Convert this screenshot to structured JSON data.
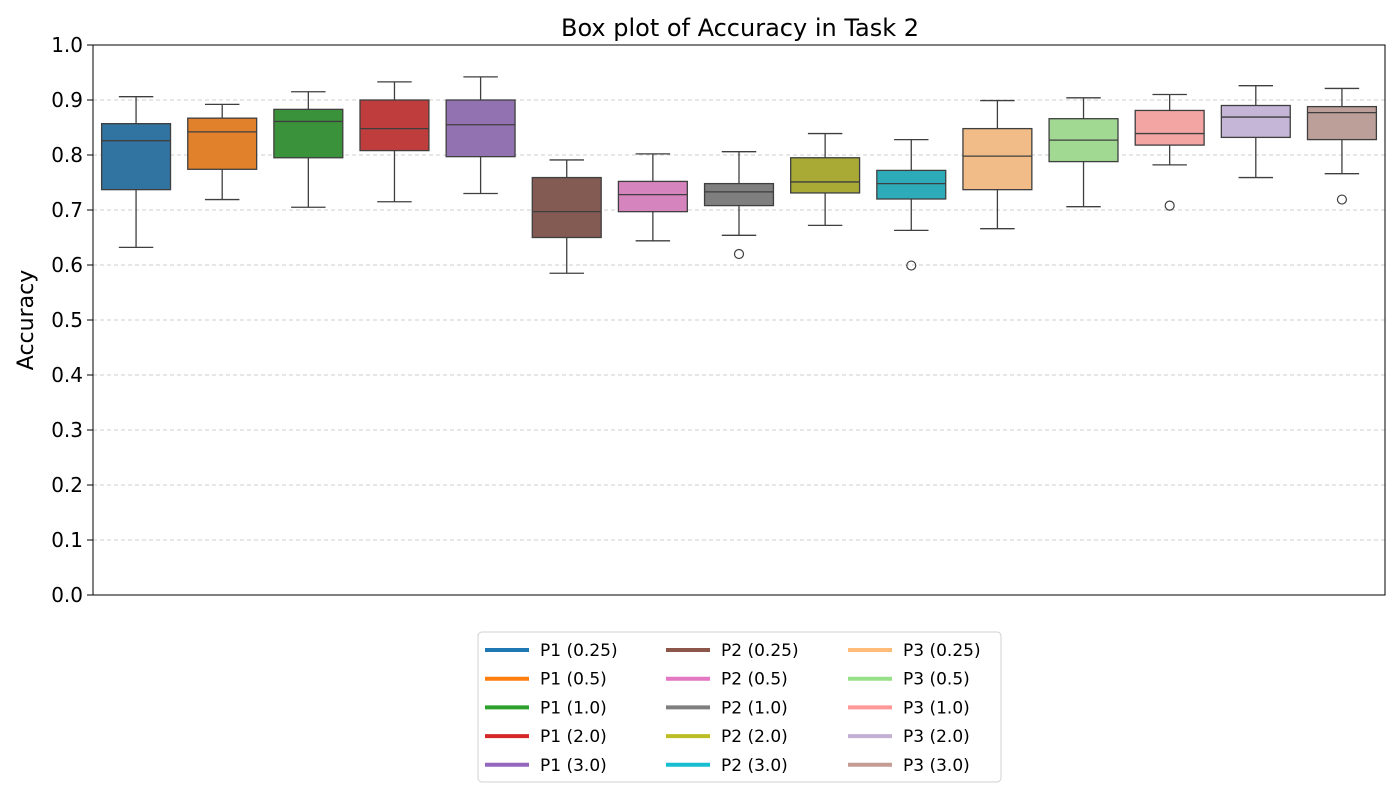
{
  "chart_data": {
    "type": "box",
    "title": "Box plot of Accuracy in Task 2",
    "xlabel": "",
    "ylabel": "Accuracy",
    "ylim": [
      0.0,
      1.0
    ],
    "yticks": [
      "0.0",
      "0.1",
      "0.2",
      "0.3",
      "0.4",
      "0.5",
      "0.6",
      "0.7",
      "0.8",
      "0.9",
      "1.0"
    ],
    "grid": "horizontal dashed",
    "legend_position": "bottom-center",
    "series": [
      {
        "name": "P1 (0.25)",
        "color": "#1f77b4",
        "box_color": "#3274a1",
        "whisker_low": 0.632,
        "q1": 0.737,
        "median": 0.826,
        "q3": 0.857,
        "whisker_high": 0.906,
        "outliers": []
      },
      {
        "name": "P1 (0.5)",
        "color": "#ff7f0e",
        "box_color": "#e1812c",
        "whisker_low": 0.719,
        "q1": 0.774,
        "median": 0.842,
        "q3": 0.867,
        "whisker_high": 0.892,
        "outliers": []
      },
      {
        "name": "P1 (1.0)",
        "color": "#2ca02c",
        "box_color": "#3a923a",
        "whisker_low": 0.705,
        "q1": 0.795,
        "median": 0.861,
        "q3": 0.883,
        "whisker_high": 0.915,
        "outliers": []
      },
      {
        "name": "P1 (2.0)",
        "color": "#d62728",
        "box_color": "#c03d3e",
        "whisker_low": 0.715,
        "q1": 0.808,
        "median": 0.848,
        "q3": 0.9,
        "whisker_high": 0.933,
        "outliers": []
      },
      {
        "name": "P1 (3.0)",
        "color": "#9467bd",
        "box_color": "#9372b2",
        "whisker_low": 0.73,
        "q1": 0.797,
        "median": 0.855,
        "q3": 0.9,
        "whisker_high": 0.942,
        "outliers": []
      },
      {
        "name": "P2 (0.25)",
        "color": "#8c564b",
        "box_color": "#845b53",
        "whisker_low": 0.585,
        "q1": 0.65,
        "median": 0.697,
        "q3": 0.759,
        "whisker_high": 0.791,
        "outliers": []
      },
      {
        "name": "P2 (0.5)",
        "color": "#e377c2",
        "box_color": "#d684bd",
        "whisker_low": 0.644,
        "q1": 0.697,
        "median": 0.728,
        "q3": 0.752,
        "whisker_high": 0.802,
        "outliers": []
      },
      {
        "name": "P2 (1.0)",
        "color": "#7f7f7f",
        "box_color": "#7f7f7f",
        "whisker_low": 0.654,
        "q1": 0.708,
        "median": 0.733,
        "q3": 0.748,
        "whisker_high": 0.806,
        "outliers": [
          0.62
        ]
      },
      {
        "name": "P2 (2.0)",
        "color": "#bcbd22",
        "box_color": "#a9aa35",
        "whisker_low": 0.672,
        "q1": 0.731,
        "median": 0.751,
        "q3": 0.795,
        "whisker_high": 0.839,
        "outliers": []
      },
      {
        "name": "P2 (3.0)",
        "color": "#17becf",
        "box_color": "#2eabb8",
        "whisker_low": 0.663,
        "q1": 0.72,
        "median": 0.748,
        "q3": 0.772,
        "whisker_high": 0.828,
        "outliers": [
          0.599
        ]
      },
      {
        "name": "P3 (0.25)",
        "color": "#ffbb78",
        "box_color": "#f1bc87",
        "whisker_low": 0.666,
        "q1": 0.737,
        "median": 0.798,
        "q3": 0.848,
        "whisker_high": 0.899,
        "outliers": []
      },
      {
        "name": "P3 (0.5)",
        "color": "#98df8a",
        "box_color": "#a1d993",
        "whisker_low": 0.706,
        "q1": 0.788,
        "median": 0.827,
        "q3": 0.866,
        "whisker_high": 0.904,
        "outliers": []
      },
      {
        "name": "P3 (1.0)",
        "color": "#ff9896",
        "box_color": "#f3a5a3",
        "whisker_low": 0.782,
        "q1": 0.818,
        "median": 0.839,
        "q3": 0.881,
        "whisker_high": 0.91,
        "outliers": [
          0.708
        ]
      },
      {
        "name": "P3 (2.0)",
        "color": "#c5b0d5",
        "box_color": "#c5b5d6",
        "whisker_low": 0.759,
        "q1": 0.832,
        "median": 0.869,
        "q3": 0.89,
        "whisker_high": 0.926,
        "outliers": []
      },
      {
        "name": "P3 (3.0)",
        "color": "#c49c94",
        "box_color": "#bd9f99",
        "whisker_low": 0.766,
        "q1": 0.828,
        "median": 0.877,
        "q3": 0.888,
        "whisker_high": 0.921,
        "outliers": [
          0.719
        ]
      }
    ]
  }
}
